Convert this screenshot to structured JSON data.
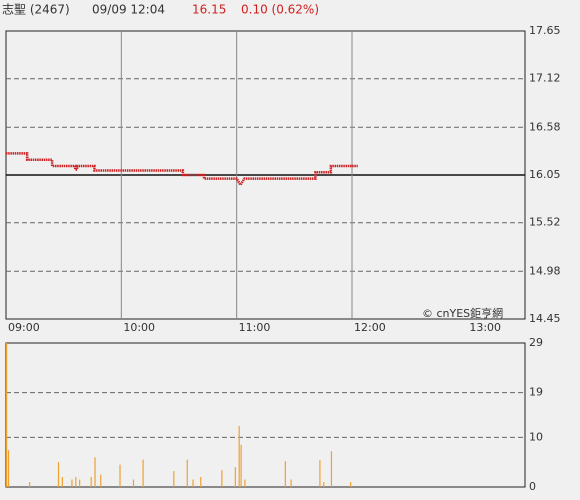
{
  "header": {
    "name": "志聖 (2467)",
    "time": "09/09 12:04",
    "price": "16.15",
    "change": "0.10 (0.62%)"
  },
  "watermark": "© cnYES鉅亨網",
  "chart_data": [
    {
      "type": "line",
      "xlim": [
        0,
        270
      ],
      "xticks": [
        {
          "value": 0,
          "label": "09:00"
        },
        {
          "value": 60,
          "label": "10:00"
        },
        {
          "value": 120,
          "label": "11:00"
        },
        {
          "value": 180,
          "label": "12:00"
        },
        {
          "value": 240,
          "label": "13:00"
        }
      ],
      "ylim": [
        14.45,
        17.65
      ],
      "yticks": [
        17.65,
        17.12,
        16.58,
        16.05,
        15.52,
        14.98,
        14.45
      ],
      "grid": true,
      "baseline": 16.05,
      "series": [
        {
          "color": "#cc2222",
          "x": [
            0,
            11,
            11,
            24,
            24,
            36,
            36,
            37,
            37,
            46,
            46,
            92,
            92,
            103,
            103,
            120,
            122,
            124,
            161,
            161,
            169,
            169,
            183
          ],
          "values": [
            16.29,
            16.29,
            16.22,
            16.22,
            16.15,
            16.15,
            16.11,
            16.11,
            16.15,
            16.15,
            16.1,
            16.1,
            16.05,
            16.05,
            16.01,
            16.01,
            15.94,
            16.01,
            16.01,
            16.08,
            16.08,
            16.15,
            16.15
          ]
        }
      ]
    },
    {
      "type": "bar",
      "xlim": [
        0,
        270
      ],
      "ylim": [
        0,
        29
      ],
      "yticks": [
        29,
        19,
        10,
        0
      ],
      "grid": true,
      "series": [
        {
          "color": "#f0a030",
          "x": [
            0,
            1,
            12,
            27,
            29,
            34,
            36,
            38,
            44,
            46,
            49,
            59,
            66,
            71,
            87,
            94,
            97,
            101,
            112,
            119,
            121,
            122,
            124,
            145,
            148,
            163,
            165,
            169,
            179
          ],
          "values": [
            29,
            7.4,
            1,
            5,
            2,
            1.5,
            2,
            1.5,
            2,
            6,
            2.5,
            4.5,
            1.5,
            5.5,
            3.2,
            5.5,
            1.5,
            2,
            3.4,
            4,
            12.3,
            8.5,
            1.5,
            5.2,
            1.5,
            5.4,
            1,
            7.2,
            1
          ]
        }
      ]
    }
  ]
}
